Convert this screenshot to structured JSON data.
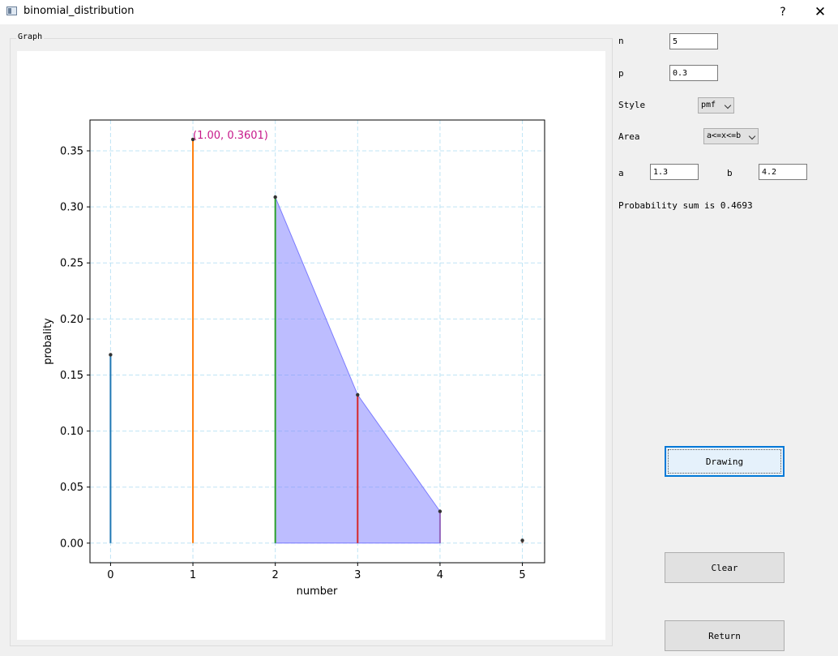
{
  "window": {
    "title": "binomial_distribution",
    "help_label": "?",
    "close_label": "✕"
  },
  "graph_group": {
    "label": "Graph"
  },
  "controls": {
    "n_label": "n",
    "n_value": "5",
    "p_label": "p",
    "p_value": "0.3",
    "style_label": "Style",
    "style_value": "pmf",
    "area_label": "Area",
    "area_value": "a<=x<=b",
    "a_label": "a",
    "a_value": "1.3",
    "b_label": "b",
    "b_value": "4.2",
    "probability_sum": "Probability sum is 0.4693"
  },
  "buttons": {
    "drawing": "Drawing",
    "clear": "Clear",
    "return": "Return"
  },
  "chart_data": {
    "type": "bar",
    "subtype": "stem",
    "xlabel": "number",
    "ylabel": "probality",
    "xlim": [
      -0.25,
      5.27
    ],
    "ylim": [
      -0.0175,
      0.3775
    ],
    "xticks": [
      0,
      1,
      2,
      3,
      4,
      5
    ],
    "xtick_labels": [
      "0",
      "1",
      "2",
      "3",
      "4",
      "5"
    ],
    "yticks": [
      0.0,
      0.05,
      0.1,
      0.15,
      0.2,
      0.25,
      0.3,
      0.35
    ],
    "ytick_labels": [
      "0.00",
      "0.05",
      "0.10",
      "0.15",
      "0.20",
      "0.25",
      "0.30",
      "0.35"
    ],
    "grid": true,
    "x": [
      0,
      1,
      2,
      3,
      4,
      5
    ],
    "values": [
      0.16807,
      0.36015,
      0.3087,
      0.1323,
      0.02835,
      0.00243
    ],
    "stem_colors": [
      "#1f77b4",
      "#ff7f0e",
      "#2ca02c",
      "#d62728",
      "#9467bd",
      "#8c564b"
    ],
    "marker_color": "#333333",
    "area": {
      "x": [
        2,
        3,
        4
      ],
      "y": [
        0.3087,
        0.1323,
        0.02835
      ],
      "color": "#7b7bff"
    },
    "annotation": {
      "text": "(1.00, 0.3601)",
      "x": 1,
      "y": 0.3601,
      "color": "#c7188a"
    }
  }
}
